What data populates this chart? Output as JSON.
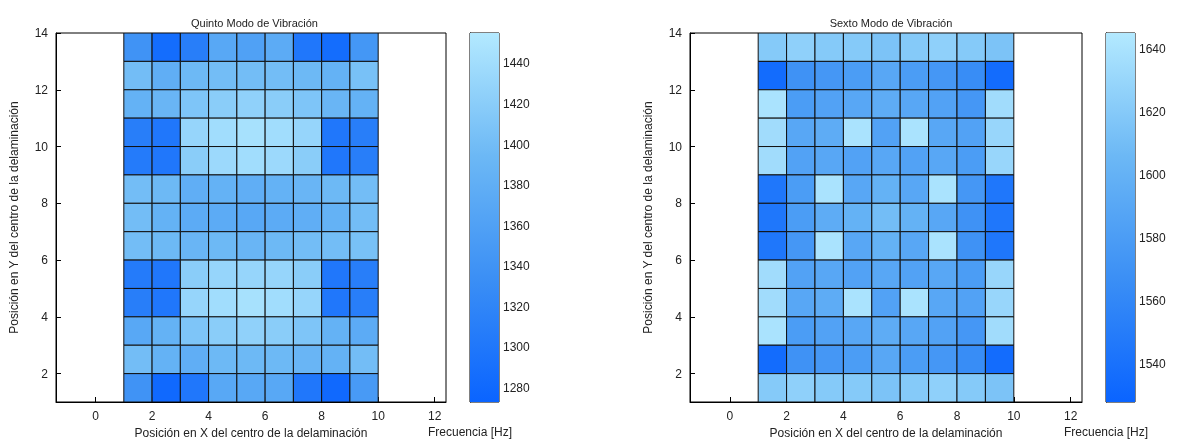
{
  "chart_data": [
    {
      "type": "heatmap",
      "title": "Quinto Modo de Vibración",
      "xlabel": "Posición en X del centro de la delaminación",
      "ylabel": "Posición en Y del centro de la delaminación",
      "clabel": "Frecuencia [Hz]",
      "x": [
        1.5,
        2.5,
        3.5,
        4.5,
        5.5,
        6.5,
        7.5,
        8.5,
        9.5
      ],
      "y": [
        13.5,
        12.5,
        11.5,
        10.5,
        9.5,
        8.5,
        7.5,
        6.5,
        5.5,
        4.5,
        3.5,
        2.5,
        1.5
      ],
      "xlim": [
        -1.4,
        12.4
      ],
      "xticks": [
        0,
        2,
        4,
        6,
        8,
        10,
        12
      ],
      "ylim": [
        1,
        14
      ],
      "yticks": [
        2,
        4,
        6,
        8,
        10,
        12,
        14
      ],
      "clim": [
        1273,
        1455
      ],
      "cticks": [
        1280,
        1300,
        1320,
        1340,
        1360,
        1380,
        1400,
        1420,
        1440
      ],
      "cells": [
        [
          1340,
          1285,
          1310,
          1370,
          1360,
          1375,
          1300,
          1285,
          1345
        ],
        [
          1400,
          1380,
          1395,
          1400,
          1400,
          1400,
          1395,
          1385,
          1405
        ],
        [
          1385,
          1390,
          1410,
          1420,
          1425,
          1420,
          1410,
          1390,
          1385
        ],
        [
          1310,
          1300,
          1430,
          1440,
          1445,
          1440,
          1430,
          1300,
          1310
        ],
        [
          1305,
          1300,
          1420,
          1435,
          1440,
          1435,
          1420,
          1300,
          1310
        ],
        [
          1400,
          1395,
          1380,
          1385,
          1380,
          1385,
          1390,
          1395,
          1400
        ],
        [
          1400,
          1385,
          1375,
          1375,
          1370,
          1375,
          1380,
          1385,
          1400
        ],
        [
          1400,
          1395,
          1390,
          1395,
          1390,
          1395,
          1400,
          1400,
          1405
        ],
        [
          1305,
          1300,
          1420,
          1430,
          1430,
          1430,
          1420,
          1300,
          1310
        ],
        [
          1310,
          1300,
          1430,
          1440,
          1445,
          1440,
          1430,
          1300,
          1310
        ],
        [
          1370,
          1385,
          1410,
          1420,
          1425,
          1420,
          1410,
          1385,
          1375
        ],
        [
          1400,
          1385,
          1380,
          1395,
          1395,
          1395,
          1390,
          1385,
          1400
        ],
        [
          1340,
          1280,
          1300,
          1370,
          1370,
          1370,
          1300,
          1280,
          1350
        ]
      ]
    },
    {
      "type": "heatmap",
      "title": "Sexto Modo de Vibración",
      "xlabel": "Posición en X del centro de la delaminación",
      "ylabel": "Posición en Y del centro de la delaminación",
      "clabel": "Frecuencia [Hz]",
      "x": [
        1.5,
        2.5,
        3.5,
        4.5,
        5.5,
        6.5,
        7.5,
        8.5,
        9.5
      ],
      "y": [
        13.5,
        12.5,
        11.5,
        10.5,
        9.5,
        8.5,
        7.5,
        6.5,
        5.5,
        4.5,
        3.5,
        2.5,
        1.5
      ],
      "xlim": [
        -1.4,
        12.4
      ],
      "xticks": [
        0,
        2,
        4,
        6,
        8,
        10,
        12
      ],
      "ylim": [
        1,
        14
      ],
      "yticks": [
        2,
        4,
        6,
        8,
        10,
        12,
        14
      ],
      "clim": [
        1528,
        1645
      ],
      "cticks": [
        1540,
        1560,
        1580,
        1600,
        1620,
        1640
      ],
      "cells": [
        [
          1620,
          1625,
          1620,
          1620,
          1615,
          1620,
          1625,
          1620,
          1615
        ],
        [
          1535,
          1570,
          1575,
          1580,
          1590,
          1580,
          1575,
          1565,
          1535
        ],
        [
          1640,
          1580,
          1585,
          1590,
          1595,
          1590,
          1585,
          1575,
          1635
        ],
        [
          1635,
          1590,
          1595,
          1640,
          1585,
          1640,
          1590,
          1585,
          1630
        ],
        [
          1635,
          1585,
          1590,
          1585,
          1590,
          1585,
          1590,
          1580,
          1630
        ],
        [
          1545,
          1580,
          1640,
          1590,
          1600,
          1590,
          1640,
          1575,
          1545
        ],
        [
          1545,
          1580,
          1595,
          1600,
          1610,
          1600,
          1590,
          1570,
          1545
        ],
        [
          1545,
          1575,
          1640,
          1590,
          1600,
          1590,
          1640,
          1570,
          1545
        ],
        [
          1635,
          1585,
          1590,
          1585,
          1590,
          1585,
          1590,
          1580,
          1630
        ],
        [
          1635,
          1590,
          1595,
          1640,
          1585,
          1640,
          1590,
          1585,
          1630
        ],
        [
          1640,
          1580,
          1585,
          1590,
          1595,
          1590,
          1585,
          1575,
          1635
        ],
        [
          1535,
          1570,
          1575,
          1580,
          1590,
          1580,
          1575,
          1565,
          1535
        ],
        [
          1620,
          1625,
          1620,
          1620,
          1615,
          1620,
          1625,
          1620,
          1615
        ]
      ]
    }
  ]
}
